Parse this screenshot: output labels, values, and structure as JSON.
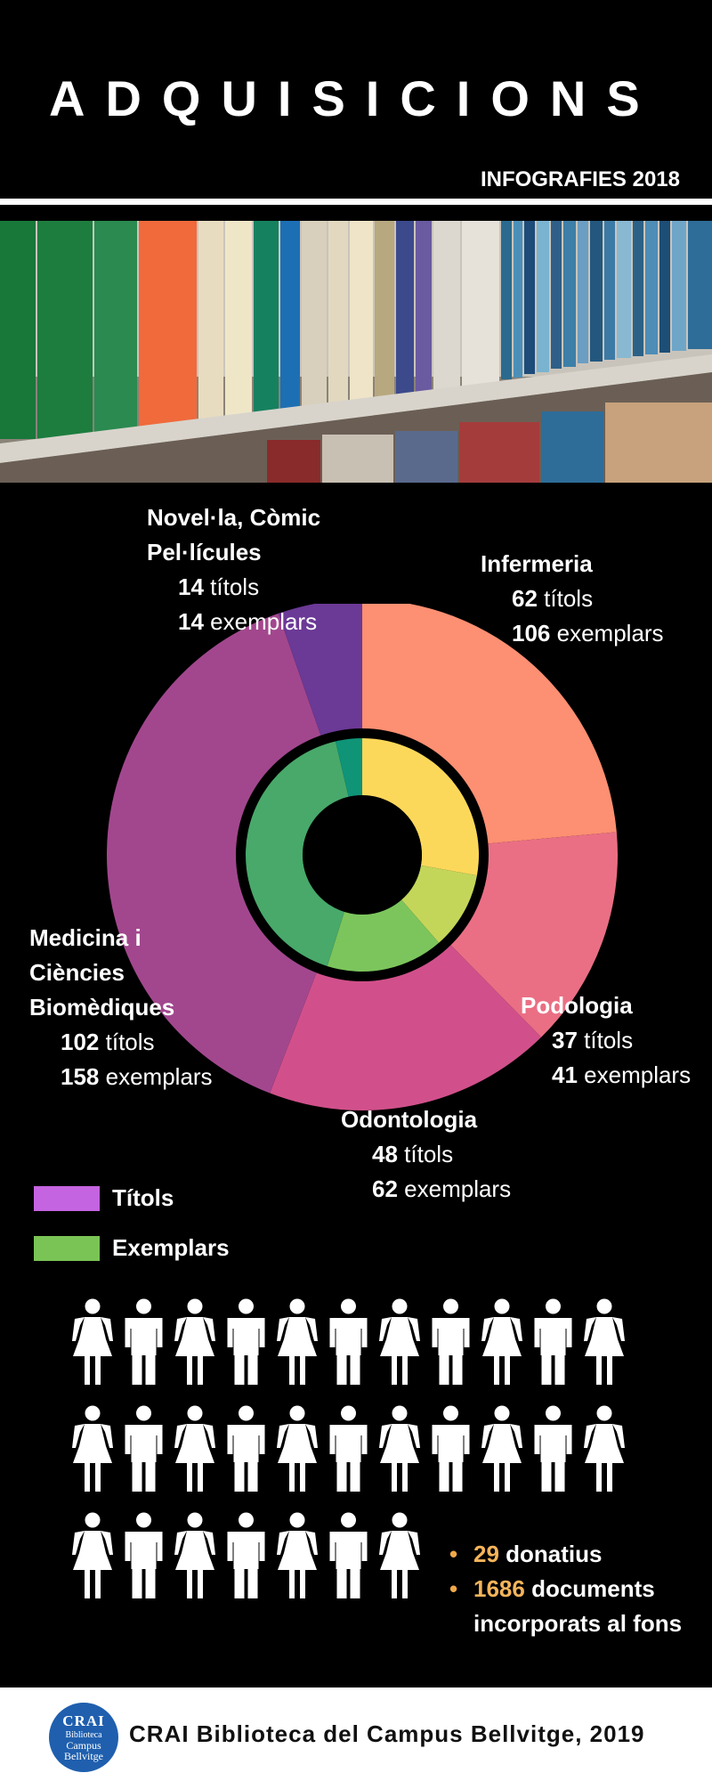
{
  "header": {
    "title": "ADQUISICIONS",
    "subtitle": "INFOGRAFIES 2018"
  },
  "chart_data": {
    "type": "pie",
    "unit_word_titles": "títols",
    "unit_word_copies": "exemplars",
    "categories": [
      {
        "name": "Infermeria",
        "titles": 62,
        "copies": 106,
        "outer_color": "#fd8f72",
        "inner_color": "#fcd85a"
      },
      {
        "name": "Podologia",
        "titles": 37,
        "copies": 41,
        "outer_color": "#ea6f84",
        "inner_color": "#c4d65a"
      },
      {
        "name": "Odontologia",
        "titles": 48,
        "copies": 62,
        "outer_color": "#d1508b",
        "inner_color": "#7cc55c"
      },
      {
        "name_lines": [
          "Medicina i",
          "Ciències",
          "Biomèdiques"
        ],
        "titles": 102,
        "copies": 158,
        "outer_color": "#a2478e",
        "inner_color": "#48a96a"
      },
      {
        "name_lines": [
          "Novel·la, Còmic",
          "Pel·lícules"
        ],
        "titles": 14,
        "copies": 14,
        "outer_color": "#6b3996",
        "inner_color": "#0f9477"
      }
    ],
    "legend": [
      {
        "label": "Títols",
        "color": "#c564e0"
      },
      {
        "label": "Exemplars",
        "color": "#7ac455"
      }
    ]
  },
  "stats": [
    {
      "value": "29",
      "label": "donatius"
    },
    {
      "value": "1686",
      "label": "documents incorporats al fons"
    }
  ],
  "people": {
    "count": 29,
    "icon": "person-icon",
    "color": "#ffffff"
  },
  "footer": {
    "logo_lines": [
      "CRAI",
      "Biblioteca",
      "Campus",
      "Bellvitge"
    ],
    "text": "CRAI Biblioteca del Campus Bellvitge, 2019"
  }
}
